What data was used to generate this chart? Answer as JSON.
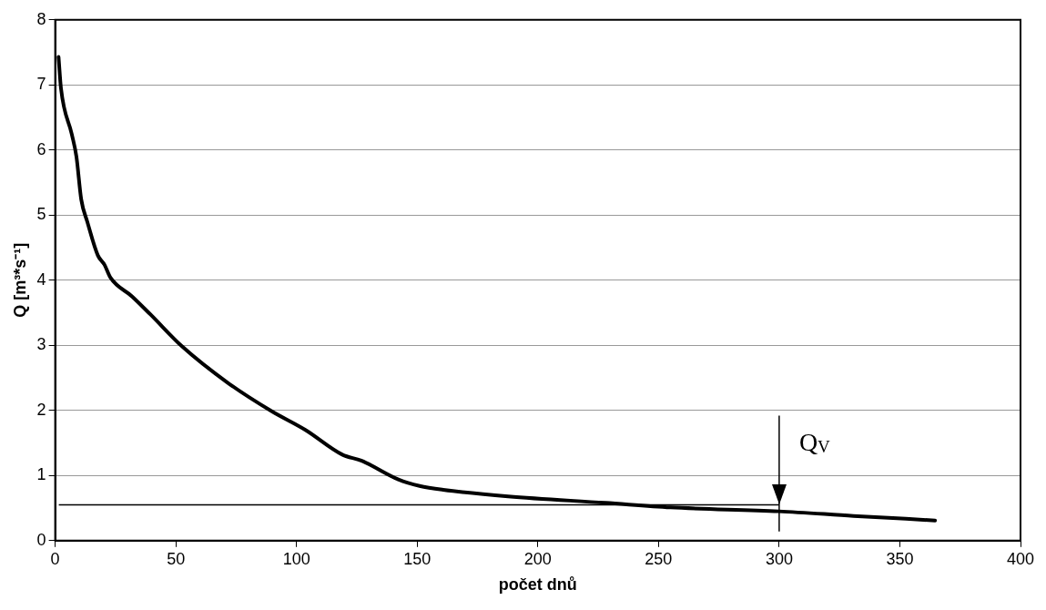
{
  "chart_data": {
    "type": "line",
    "xlabel": "počet dnů",
    "ylabel": "Q [m³*s⁻¹]",
    "xlim": [
      0,
      400
    ],
    "xticks": [
      0,
      50,
      100,
      150,
      200,
      250,
      300,
      350,
      400
    ],
    "ylim": [
      0,
      8
    ],
    "yticks": [
      0,
      1,
      2,
      3,
      4,
      5,
      6,
      7,
      8
    ],
    "grid": "y",
    "legend": false,
    "marker": "none",
    "line_style": "solid",
    "series": [
      {
        "color": "#000000",
        "x": [
          1.4,
          2.4,
          6.9,
          8.8,
          10.8,
          13.3,
          17.7,
          20.4,
          22.9,
          31.9,
          39.6,
          52.4,
          71.7,
          89.6,
          103.7,
          119,
          126.8,
          142.2,
          151,
          160.8,
          187.7,
          228,
          255,
          299.9,
          330.8,
          364.6
        ],
        "values": [
          7.43,
          6.95,
          6.24,
          5.9,
          5.24,
          4.9,
          4.38,
          4.24,
          4.04,
          3.75,
          3.47,
          2.99,
          2.42,
          1.99,
          1.7,
          1.32,
          1.23,
          0.94,
          0.84,
          0.78,
          0.68,
          0.58,
          0.51,
          0.45,
          0.38,
          0.31
        ]
      }
    ],
    "ref_lines": [
      {
        "axis": "y",
        "value": 0.55,
        "color": "#000000"
      },
      {
        "axis": "x",
        "value": 300,
        "label": "Q$_{V}$",
        "color": "#000000"
      }
    ]
  }
}
